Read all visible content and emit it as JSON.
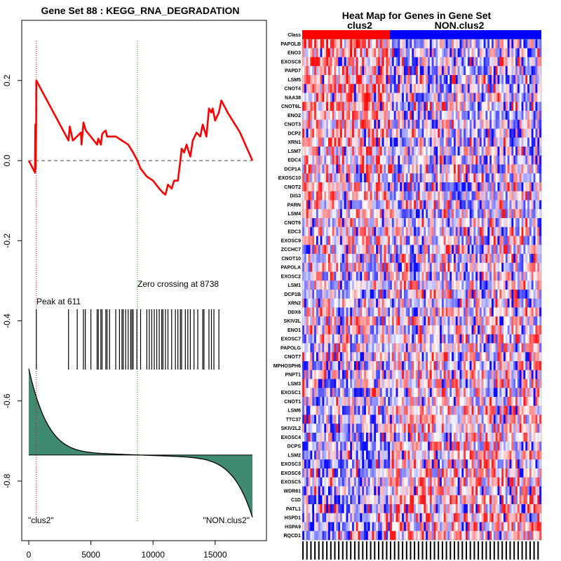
{
  "chart_data": [
    {
      "type": "line",
      "title": "Gene Set  88 : KEGG_RNA_DEGRADATION",
      "xlim": [
        0,
        18000
      ],
      "ylim": [
        -0.9,
        0.3
      ],
      "xticks": [
        0,
        5000,
        10000,
        15000
      ],
      "yticks": [
        0.2,
        0.0,
        -0.2,
        -0.4,
        -0.6,
        -0.8
      ],
      "ytick_labels": [
        "0.2",
        "0.0",
        "-0.2",
        "-0.4",
        "-0.6",
        "-0.8"
      ],
      "peak_label": "Peak at 611",
      "peak_x": 611,
      "zero_crossing_label": "Zero crossing at 8738",
      "zero_crossing_x": 8738,
      "left_class_label": "\"clus2\"",
      "right_class_label": "\"NON.clus2\"",
      "enrichment_score": {
        "x": [
          0,
          500,
          530,
          560,
          600,
          611,
          3200,
          3300,
          3550,
          4200,
          4250,
          4400,
          4450,
          4600,
          5500,
          5600,
          5800,
          5900,
          6000,
          6200,
          6300,
          7000,
          7500,
          8000,
          8400,
          8738,
          9000,
          9500,
          10000,
          10500,
          10800,
          11000,
          11200,
          11500,
          11700,
          12000,
          12200,
          12300,
          12500,
          12700,
          12800,
          13000,
          13200,
          13500,
          13800,
          14000,
          14300,
          14500,
          14700,
          14800,
          15000,
          15300,
          15500,
          16000,
          17000,
          18000
        ],
        "y": [
          0.0,
          -0.03,
          0.09,
          -0.02,
          0.1,
          0.2,
          0.05,
          0.085,
          0.05,
          0.07,
          0.04,
          0.095,
          0.09,
          0.075,
          0.04,
          0.055,
          0.04,
          0.065,
          0.07,
          0.075,
          0.06,
          0.06,
          0.05,
          0.04,
          0.02,
          0.0,
          -0.02,
          -0.04,
          -0.05,
          -0.07,
          -0.08,
          -0.085,
          -0.06,
          -0.07,
          -0.05,
          -0.05,
          0.0,
          0.03,
          0.02,
          0.04,
          0.03,
          0.01,
          0.05,
          0.07,
          0.06,
          0.09,
          0.06,
          0.13,
          0.12,
          0.13,
          0.1,
          0.12,
          0.15,
          0.12,
          0.07,
          0.0
        ]
      },
      "hits": [
        611,
        3200,
        3900,
        4400,
        4550,
        5000,
        5500,
        5600,
        5800,
        5900,
        6200,
        6300,
        6500,
        7000,
        7300,
        7500,
        7600,
        7800,
        8000,
        8200,
        8300,
        8400,
        8700,
        9000,
        9500,
        9700,
        9900,
        10100,
        10300,
        10500,
        10700,
        10800,
        11000,
        11200,
        11500,
        11800,
        12000,
        12200,
        12300,
        12600,
        12800,
        13000,
        13300,
        13600,
        14000,
        14100,
        14500,
        14700,
        14900,
        15300
      ],
      "ranked_metric_zero_y": -0.735,
      "ranked_metric_top_y": -0.53,
      "ranked_metric_bottom_y": -0.88
    },
    {
      "type": "heatmap",
      "title": "Heat Map for Genes in Gene Set",
      "row_header": "Class",
      "class_labels": [
        "clus2",
        "NON.clus2"
      ],
      "class_split_fraction": 0.37,
      "class_colors": [
        "#ff0000",
        "#0000ff"
      ],
      "genes": [
        "PAPOLB",
        "ENO3",
        "EXOSC8",
        "PAPD7",
        "LSM5",
        "CNOT4",
        "NAA38",
        "CNOT6L",
        "ENO2",
        "CNOT3",
        "DCP2",
        "XRN1",
        "LSM7",
        "EDC4",
        "DCP1A",
        "EXOSC10",
        "CNOT2",
        "DIS3",
        "PARN",
        "LSM4",
        "CNOT6",
        "EDC3",
        "EXOSC9",
        "ZCCHC7",
        "CNOT10",
        "PAPOLA",
        "EXOSC2",
        "LSM1",
        "DCP1B",
        "XRN2",
        "DDX6",
        "SKIV2L",
        "ENO1",
        "EXOSC7",
        "PAPOLG",
        "CNOT7",
        "MPHOSPH6",
        "PNPT1",
        "LSM3",
        "EXOSC1",
        "CNOT1",
        "LSM6",
        "TTC37",
        "SKIV2L2",
        "EXOSC4",
        "DCPS",
        "LSM2",
        "EXOSC3",
        "EXOSC6",
        "EXOSC5",
        "WDR61",
        "C1D",
        "PATL1",
        "HSPD1",
        "HSPA9",
        "RQCD1"
      ]
    }
  ]
}
